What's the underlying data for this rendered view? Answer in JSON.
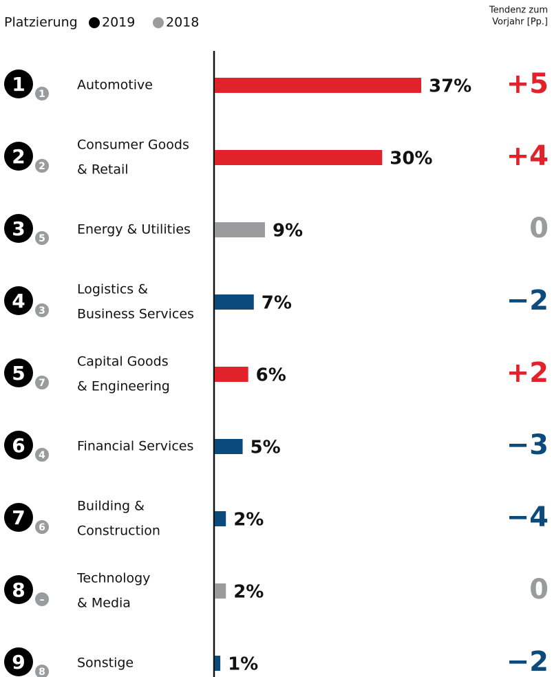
{
  "chart_data": {
    "type": "bar",
    "legend_title": "Platzierung",
    "legend": [
      {
        "name": "2019",
        "color": "#000000"
      },
      {
        "name": "2018",
        "color": "#9a9b9d"
      }
    ],
    "trend_title": [
      "Tendenz zum",
      "Vorjahr [Pp.]"
    ],
    "categories": [
      [
        "Automotive"
      ],
      [
        "Consumer Goods",
        "& Retail"
      ],
      [
        "Energy & Utilities"
      ],
      [
        "Logistics &",
        "Business Services"
      ],
      [
        "Capital Goods",
        "& Engineering"
      ],
      [
        "Financial Services"
      ],
      [
        "Building &",
        "Construction"
      ],
      [
        "Technology",
        "& Media"
      ],
      [
        "Sonstige"
      ]
    ],
    "ranks_2019": [
      1,
      2,
      3,
      4,
      5,
      6,
      7,
      8,
      9
    ],
    "ranks_2018": [
      "1",
      "2",
      "5",
      "3",
      "7",
      "4",
      "6",
      "–",
      "8"
    ],
    "values": [
      37,
      30,
      9,
      7,
      6,
      5,
      2,
      2,
      1
    ],
    "value_labels": [
      "37%",
      "30%",
      "9%",
      "7%",
      "6%",
      "5%",
      "2%",
      "2%",
      "1%"
    ],
    "colors": [
      "#e2222a",
      "#e2222a",
      "#9a9b9d",
      "#0d4a7c",
      "#e2222a",
      "#0d4a7c",
      "#0d4a7c",
      "#9a9b9d",
      "#0d4a7c"
    ],
    "trend": [
      5,
      4,
      0,
      -2,
      2,
      -3,
      -4,
      0,
      -2
    ],
    "trend_labels": [
      "+5",
      "+4",
      "0",
      "−2",
      "+2",
      "−3",
      "−4",
      "0",
      "−2"
    ],
    "trend_colors": {
      "positive": "#e2222a",
      "zero": "#9a9b9d",
      "negative": "#0d4a7c"
    },
    "xlim": [
      0,
      37
    ]
  }
}
